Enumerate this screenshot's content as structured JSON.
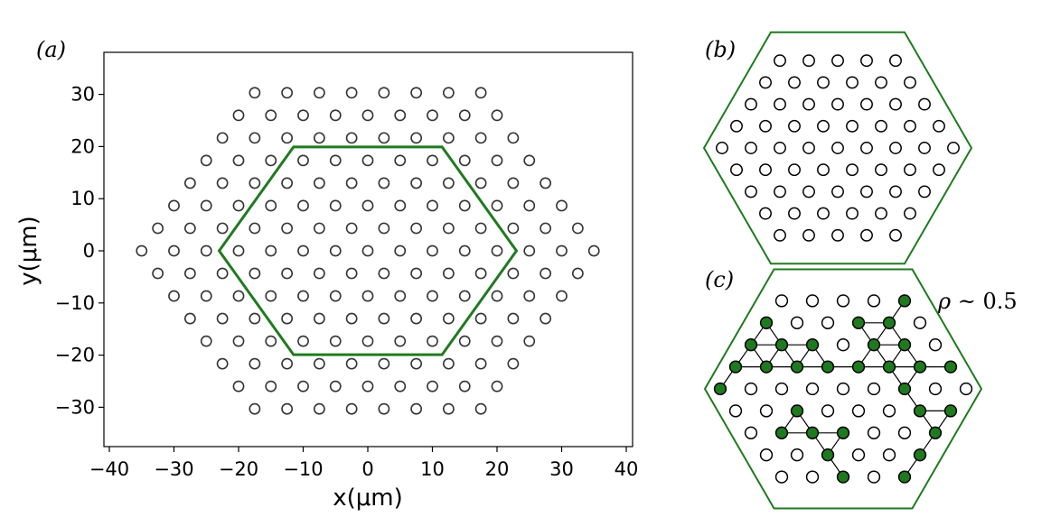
{
  "panels": {
    "a": {
      "label": "(a)"
    },
    "b": {
      "label": "(b)"
    },
    "c": {
      "label": "(c)",
      "annotation_symbol": "ρ",
      "annotation_text": " ~ 0.5"
    }
  },
  "chart_data": {
    "type": "scatter",
    "title": "",
    "xlabel": "x(μm)",
    "ylabel": "y(μm)",
    "xlim": [
      -41,
      41
    ],
    "ylim": [
      -38,
      38
    ],
    "xticks": [
      -40,
      -30,
      -20,
      -10,
      0,
      10,
      20,
      30,
      40
    ],
    "yticks": [
      30,
      20,
      10,
      0,
      -10,
      -20,
      -30
    ],
    "xtick_labels": [
      "−40",
      "−30",
      "−20",
      "−10",
      "0",
      "10",
      "20",
      "30",
      "40"
    ],
    "ytick_labels": [
      "30",
      "20",
      "10",
      "0",
      "−10",
      "−20",
      "−30"
    ],
    "marker": "open-circle",
    "lattice": "triangular",
    "lattice_spacing_um": 5,
    "array_shape": "hexagon",
    "array_circumradius_um": 37.5,
    "highlight_hexagon": {
      "color": "#1f7a1f",
      "circumradius_um": 23
    },
    "grid": false
  },
  "panel_b": {
    "atoms": "open-circle",
    "border_color": "#1f7a1f"
  },
  "panel_c": {
    "border_color": "#1f7a1f",
    "filled_color": "#1f7a1f",
    "rows": [
      "00001",
      "100110",
      "1110110",
      "11111111",
      "100000100",
      "00100011",
      "0111001",
      "001001",
      "00101"
    ]
  }
}
